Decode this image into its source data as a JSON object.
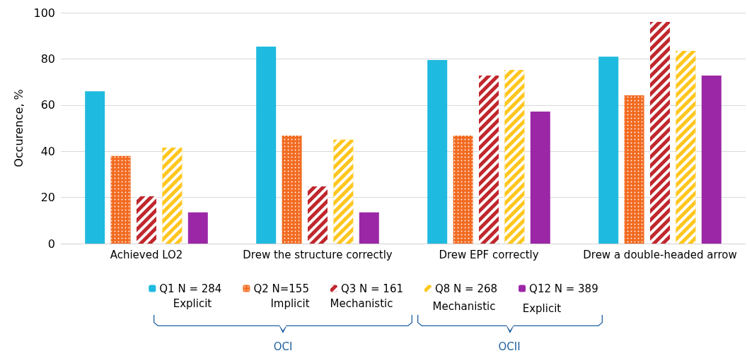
{
  "chart_data": {
    "type": "bar",
    "ylabel": "Occurence, %",
    "categories": [
      "Achieved LO2",
      "Drew the structure correctly",
      "Drew EPF correctly",
      "Drew a double-headed arrow"
    ],
    "series": [
      {
        "name": "Q1 N = 284",
        "color": "#1fbadf",
        "values": [
          66,
          85.3,
          79.5,
          81
        ]
      },
      {
        "name": "Q2 N=155",
        "color": "#f26b21",
        "values": [
          38,
          46.8,
          46.8,
          64.2
        ]
      },
      {
        "name": "Q3 N = 161",
        "color": "#c0272d",
        "values": [
          20.5,
          24.8,
          72.8,
          96
        ]
      },
      {
        "name": "Q8 N = 268",
        "color": "#ffc61e",
        "values": [
          41.6,
          45,
          75.2,
          83.5
        ]
      },
      {
        "name": "Q12 N = 389",
        "color": "#9b27a6",
        "values": [
          13.5,
          13.5,
          57.2,
          72.8
        ]
      }
    ],
    "ylim": [
      0,
      100
    ],
    "yticks": [
      0,
      20,
      40,
      60,
      80,
      100
    ],
    "grid": "y",
    "legend": "bottom",
    "annotations": [
      "Explicit",
      "Implicit",
      "Mechanistic",
      "Mechanistic",
      "Explicit",
      "OCI",
      "OCII"
    ]
  }
}
